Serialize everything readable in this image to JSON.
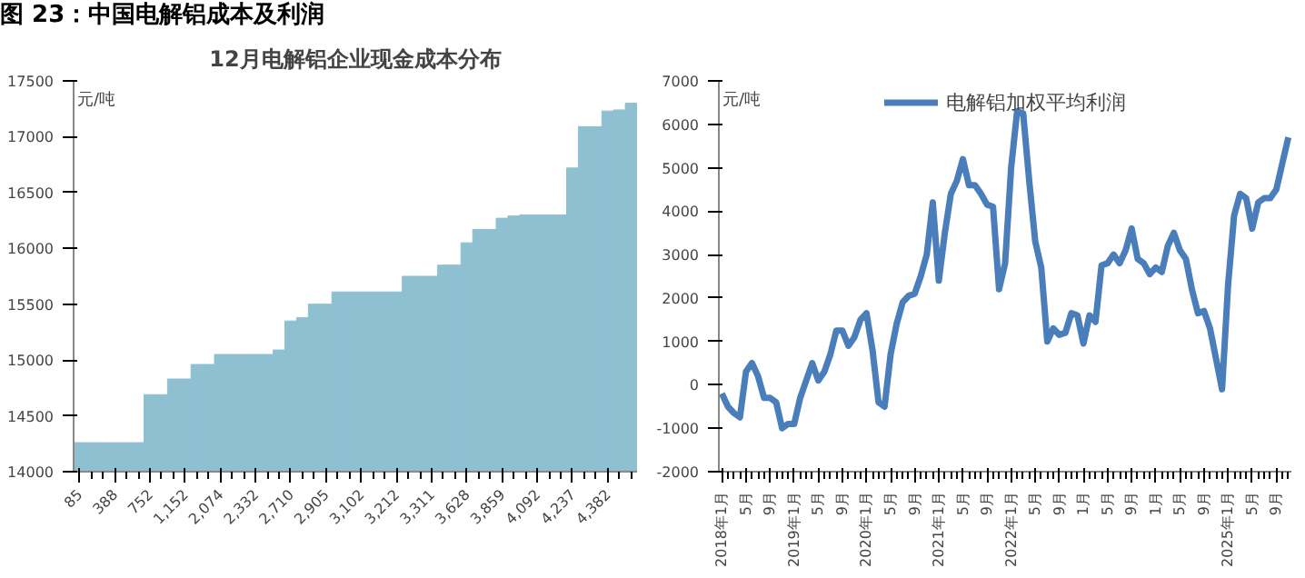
{
  "chart_data": [
    {
      "type": "bar",
      "title": "12月电解铝企业现金成本分布",
      "ylabel": "元/吨",
      "annotations": [
        "图 23：中国电解铝成本及利润"
      ],
      "categories": [
        "85",
        null,
        null,
        "388",
        null,
        null,
        "752",
        null,
        null,
        "1,152",
        null,
        null,
        "2,074",
        null,
        null,
        "2,332",
        null,
        null,
        "2,710",
        null,
        null,
        "2,905",
        null,
        null,
        "3,102",
        null,
        null,
        "3,212",
        null,
        null,
        "3,311",
        null,
        null,
        "3,628",
        null,
        null,
        "3,859",
        null,
        null,
        "4,092",
        null,
        null,
        "4,237",
        null,
        null,
        "4,382",
        null,
        null
      ],
      "values": [
        14260,
        14260,
        14260,
        14260,
        14260,
        14260,
        14690,
        14690,
        14830,
        14830,
        14960,
        14960,
        15050,
        15050,
        15050,
        15050,
        15050,
        15090,
        15350,
        15380,
        15500,
        15500,
        15610,
        15610,
        15610,
        15610,
        15610,
        15610,
        15750,
        15750,
        15750,
        15850,
        15850,
        16050,
        16170,
        16170,
        16270,
        16290,
        16300,
        16300,
        16300,
        16300,
        16720,
        17090,
        17090,
        17230,
        17240,
        17300
      ],
      "color": "#8fc0d2",
      "ylim": [
        14000,
        17500
      ],
      "yticks": [
        14000,
        14500,
        15000,
        15500,
        16000,
        16500,
        17000,
        17500
      ],
      "grid": false
    },
    {
      "type": "line",
      "ylabel": "元/吨",
      "legend": "top",
      "categories": [
        "2018年1月",
        null,
        null,
        null,
        "5月",
        null,
        null,
        null,
        "9月",
        null,
        null,
        null,
        "2019年1月",
        null,
        null,
        null,
        "5月",
        null,
        null,
        null,
        "9月",
        null,
        null,
        null,
        "2020年1月",
        null,
        null,
        null,
        "5月",
        null,
        null,
        null,
        "9月",
        null,
        null,
        null,
        "2021年1月",
        null,
        null,
        null,
        "5月",
        null,
        null,
        null,
        "9月",
        null,
        null,
        null,
        "2022年1月",
        null,
        null,
        null,
        "5月",
        null,
        null,
        null,
        "9月",
        null,
        null,
        null,
        "1月",
        null,
        null,
        null,
        "5月",
        null,
        null,
        null,
        "9月",
        null,
        null,
        null,
        "1月",
        null,
        null,
        null,
        "5月",
        null,
        null,
        null,
        "9月",
        null,
        null,
        null,
        "2025年1月",
        null,
        null,
        null,
        "5月",
        null,
        null,
        null,
        "9月",
        null,
        null
      ],
      "series": [
        {
          "name": "电解铝加权平均利润",
          "color": "#4a7ebb",
          "values": [
            -200,
            -500,
            -650,
            -750,
            300,
            500,
            200,
            -300,
            -300,
            -400,
            -1000,
            -900,
            -900,
            -300,
            100,
            500,
            100,
            300,
            700,
            1250,
            1250,
            900,
            1100,
            1500,
            1650,
            800,
            -400,
            -500,
            700,
            1400,
            1900,
            2050,
            2100,
            2500,
            3000,
            4200,
            2400,
            3500,
            4400,
            4700,
            5200,
            4600,
            4600,
            4400,
            4150,
            4100,
            2200,
            2800,
            5000,
            6300,
            6250,
            4700,
            3300,
            2700,
            1000,
            1300,
            1150,
            1200,
            1650,
            1600,
            950,
            1600,
            1450,
            2750,
            2800,
            3000,
            2800,
            3100,
            3600,
            2900,
            2800,
            2550,
            2700,
            2600,
            3200,
            3500,
            3100,
            2900,
            2200,
            1650,
            1700,
            1300,
            600,
            -100,
            2300,
            3900,
            4400,
            4300,
            3600,
            4200,
            4300,
            4300,
            4500,
            5100,
            5700
          ]
        }
      ],
      "ylim": [
        -2000,
        7000
      ],
      "yticks": [
        -2000,
        -1000,
        0,
        1000,
        2000,
        3000,
        4000,
        5000,
        6000,
        7000
      ],
      "grid": false,
      "marker": "none",
      "line_style": "solid"
    }
  ]
}
